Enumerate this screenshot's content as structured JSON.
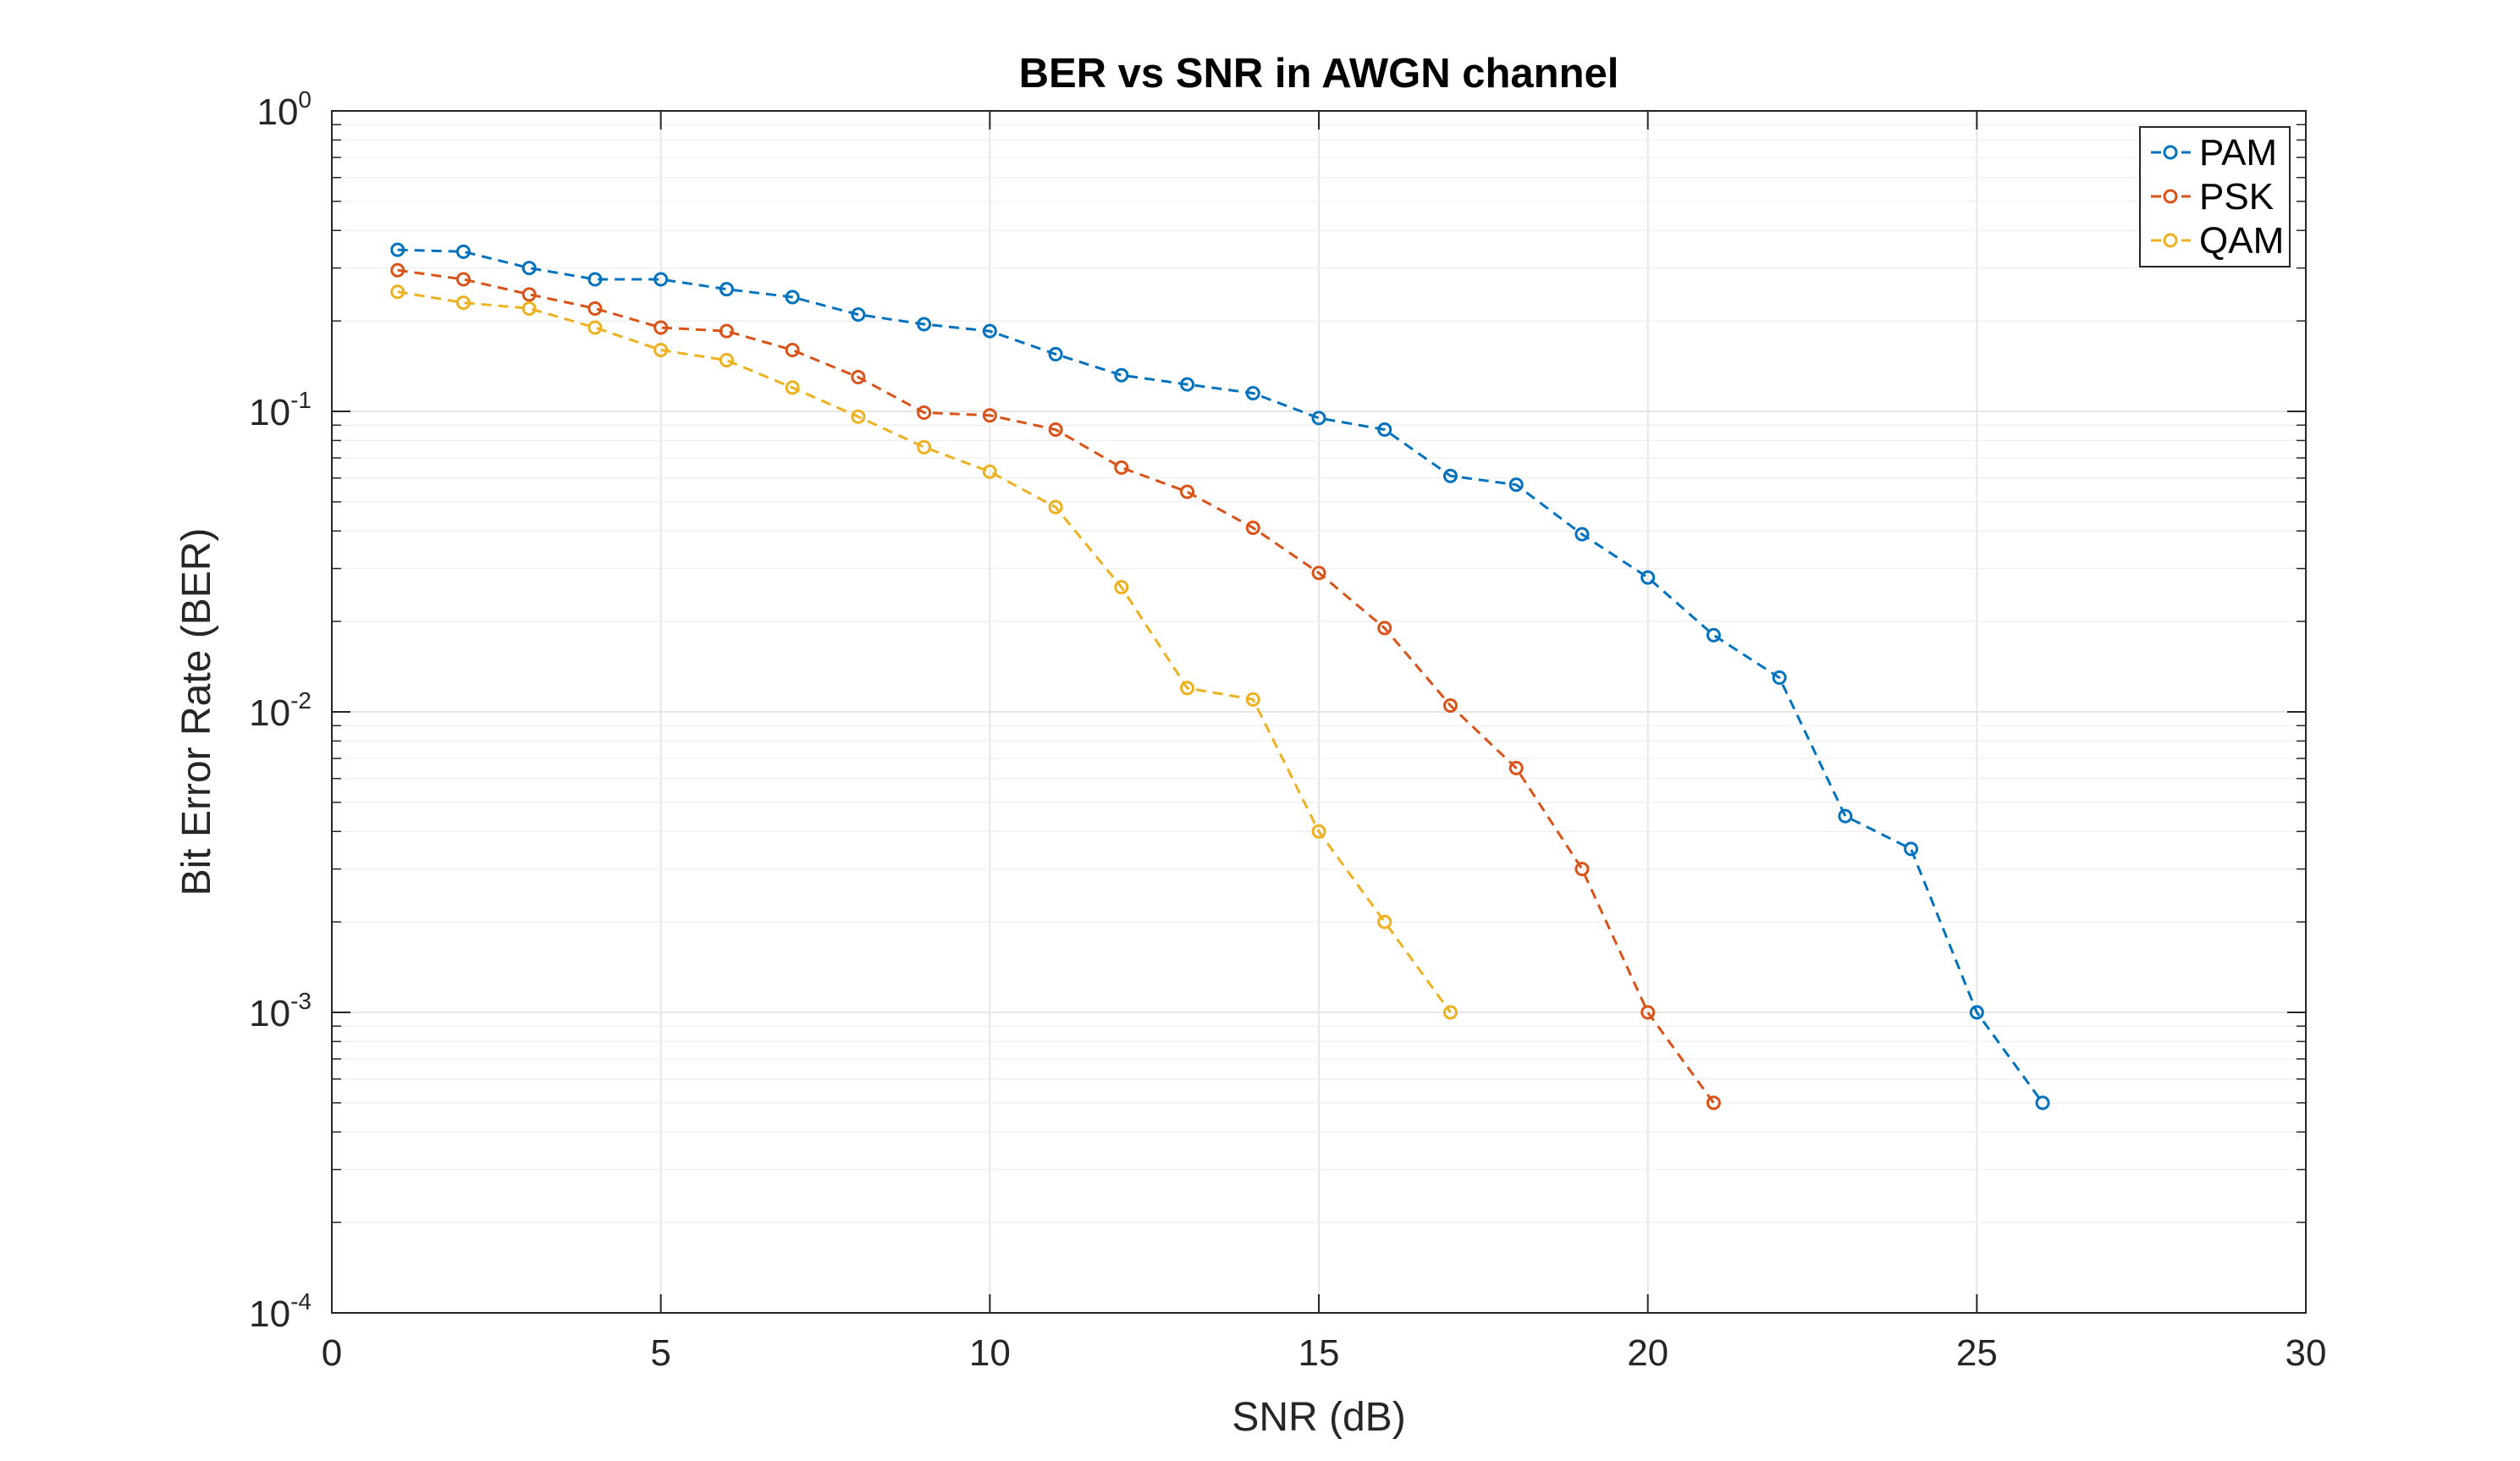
{
  "chart_data": {
    "type": "line",
    "title": "BER vs SNR in AWGN channel",
    "xlabel": "SNR (dB)",
    "ylabel": "Bit Error Rate (BER)",
    "xlim": [
      0,
      30
    ],
    "ylim": [
      0.0001,
      1
    ],
    "yscale": "log",
    "grid": true,
    "legend_position": "top-right",
    "x_ticks": [
      "0",
      "5",
      "10",
      "15",
      "20",
      "25",
      "30"
    ],
    "y_ticks": [
      {
        "base": "10",
        "exp": "0"
      },
      {
        "base": "10",
        "exp": "-1"
      },
      {
        "base": "10",
        "exp": "-2"
      },
      {
        "base": "10",
        "exp": "-3"
      },
      {
        "base": "10",
        "exp": "-4"
      }
    ],
    "series": [
      {
        "name": "PAM",
        "color": "#0072BD",
        "x": [
          1,
          2,
          3,
          4,
          5,
          6,
          7,
          8,
          9,
          10,
          11,
          12,
          13,
          14,
          15,
          16,
          17,
          18,
          19,
          20,
          21,
          22,
          23,
          24,
          25,
          26
        ],
        "values": [
          0.345,
          0.34,
          0.3,
          0.275,
          0.275,
          0.255,
          0.24,
          0.21,
          0.195,
          0.185,
          0.155,
          0.132,
          0.123,
          0.115,
          0.095,
          0.087,
          0.061,
          0.057,
          0.039,
          0.028,
          0.018,
          0.013,
          0.0045,
          0.0035,
          0.001,
          0.0005
        ]
      },
      {
        "name": "PSK",
        "color": "#D95319",
        "x": [
          1,
          2,
          3,
          4,
          5,
          6,
          7,
          8,
          9,
          10,
          11,
          12,
          13,
          14,
          15,
          16,
          17,
          18,
          19,
          20,
          21
        ],
        "values": [
          0.295,
          0.275,
          0.245,
          0.22,
          0.19,
          0.185,
          0.16,
          0.13,
          0.099,
          0.097,
          0.087,
          0.065,
          0.054,
          0.041,
          0.029,
          0.019,
          0.0105,
          0.0065,
          0.003,
          0.001,
          0.0005
        ]
      },
      {
        "name": "QAM",
        "color": "#EDB120",
        "x": [
          1,
          2,
          3,
          4,
          5,
          6,
          7,
          8,
          9,
          10,
          11,
          12,
          13,
          14,
          15,
          16,
          17
        ],
        "values": [
          0.25,
          0.23,
          0.22,
          0.19,
          0.16,
          0.148,
          0.12,
          0.096,
          0.076,
          0.063,
          0.048,
          0.026,
          0.012,
          0.011,
          0.004,
          0.002,
          0.001
        ]
      }
    ]
  }
}
